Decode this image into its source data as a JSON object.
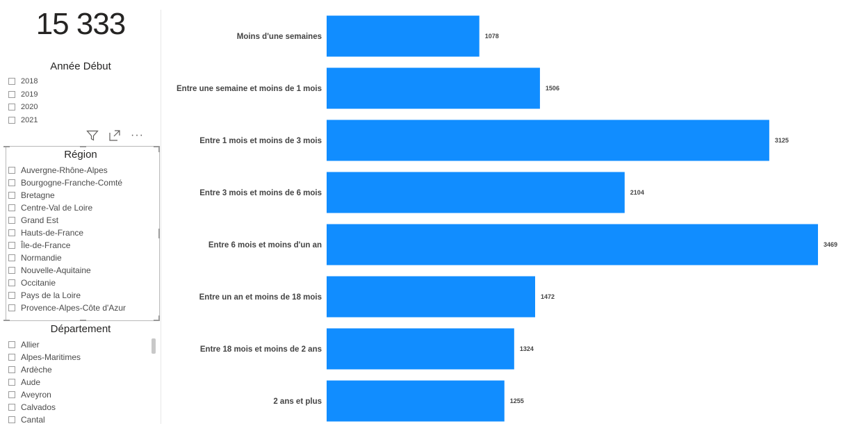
{
  "kpi": {
    "value": "15 333"
  },
  "year_slicer": {
    "title": "Année Début",
    "items": [
      "2018",
      "2019",
      "2020",
      "2021"
    ]
  },
  "toolbar": {
    "more_label": "···"
  },
  "region_slicer": {
    "title": "Région",
    "items": [
      "Auvergne-Rhône-Alpes",
      "Bourgogne-Franche-Comté",
      "Bretagne",
      "Centre-Val de Loire",
      "Grand Est",
      "Hauts-de-France",
      "Île-de-France",
      "Normandie",
      "Nouvelle-Aquitaine",
      "Occitanie",
      "Pays de la Loire",
      "Provence-Alpes-Côte d'Azur"
    ]
  },
  "departement_slicer": {
    "title": "Département",
    "items": [
      "Allier",
      "Alpes-Maritimes",
      "Ardèche",
      "Aude",
      "Aveyron",
      "Calvados",
      "Cantal"
    ]
  },
  "colors": {
    "bar": "#118dff",
    "accent": "#118dff"
  },
  "chart_data": {
    "type": "bar",
    "orientation": "horizontal",
    "categories": [
      "Moins d'une semaines",
      "Entre une semaine et moins de 1 mois",
      "Entre 1 mois et moins de 3 mois",
      "Entre 3 mois et moins de 6 mois",
      "Entre 6 mois et moins d'un an",
      "Entre un an et moins de 18 mois",
      "Entre 18 mois et moins de 2 ans",
      "2 ans et plus"
    ],
    "values": [
      1078,
      1506,
      3125,
      2104,
      3469,
      1472,
      1324,
      1255
    ],
    "data_labels": true,
    "xlim": [
      0,
      3469
    ],
    "grid": false,
    "legend": "none",
    "title": "",
    "xlabel": "",
    "ylabel": ""
  }
}
